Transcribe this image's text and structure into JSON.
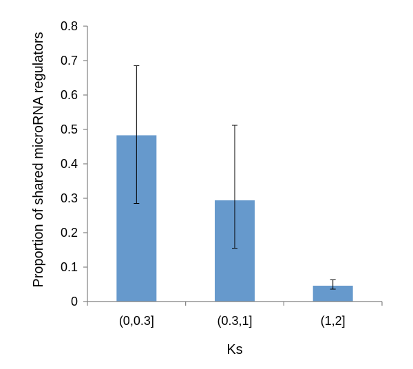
{
  "chart_data": {
    "type": "bar",
    "categories": [
      "(0,0.3]",
      "(0.3,1]",
      "(1,2]"
    ],
    "values": [
      0.483,
      0.294,
      0.046
    ],
    "error_low": [
      0.285,
      0.155,
      0.036
    ],
    "error_high": [
      0.685,
      0.512,
      0.063
    ],
    "xlabel": "Ks",
    "ylabel": "Proportion of shared microRNA regulators",
    "ylim": [
      0,
      0.8
    ],
    "yticks": [
      "0",
      "0.1",
      "0.2",
      "0.3",
      "0.4",
      "0.5",
      "0.6",
      "0.7",
      "0.8"
    ],
    "bar_color": "#6699cc",
    "grid": false,
    "legend": "none"
  }
}
